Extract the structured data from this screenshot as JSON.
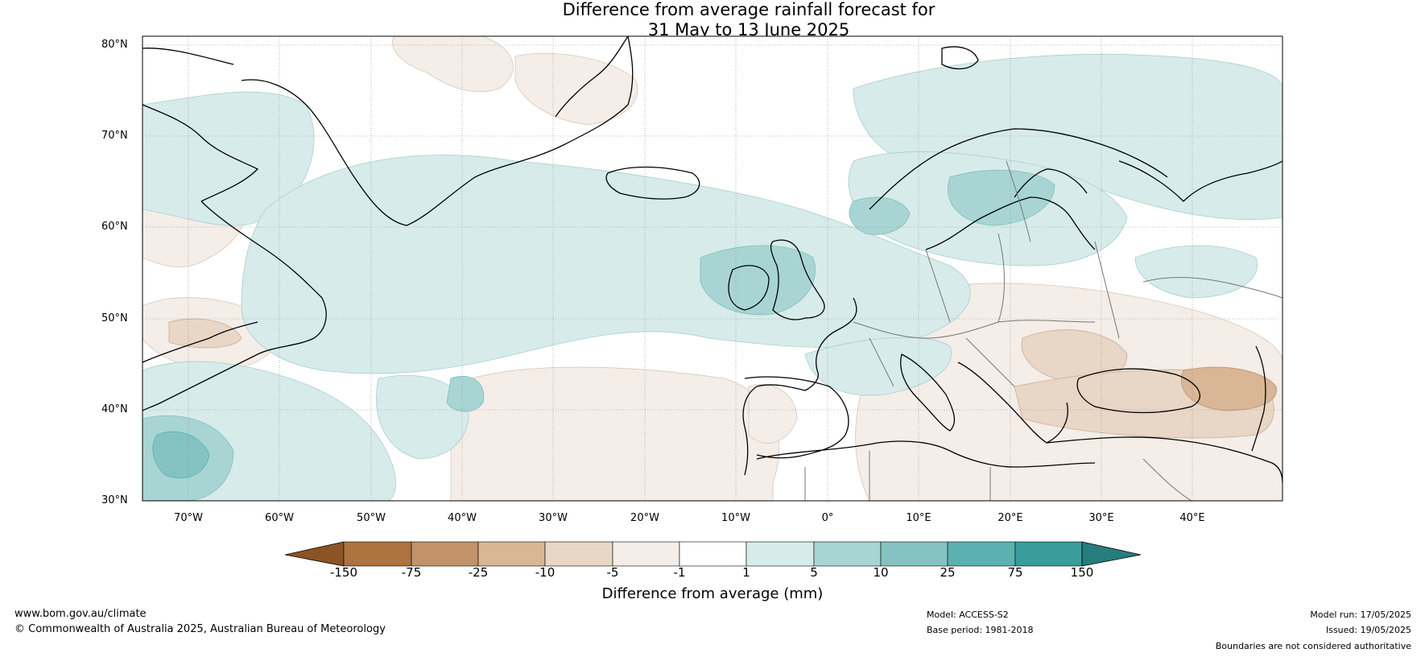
{
  "title": {
    "line1": "Difference from average rainfall forecast for",
    "line2": "31 May to 13 June 2025"
  },
  "map": {
    "lat_ticks": [
      "80°N",
      "70°N",
      "60°N",
      "50°N",
      "40°N",
      "30°N"
    ],
    "lon_ticks": [
      "70°W",
      "60°W",
      "50°W",
      "40°W",
      "30°W",
      "20°W",
      "10°W",
      "0°",
      "10°E",
      "20°E",
      "30°E",
      "40°E"
    ],
    "colors": {
      "frame": "#000000",
      "gridline": "#888888",
      "coastline": "#000000",
      "border": "#777777"
    }
  },
  "colorbar": {
    "title": "Difference from average (mm)",
    "ticks": [
      "-150",
      "-75",
      "-25",
      "-10",
      "-5",
      "-1",
      "1",
      "5",
      "10",
      "25",
      "75",
      "150"
    ],
    "colors": [
      "#8c5424",
      "#ad7340",
      "#c29268",
      "#d8b696",
      "#e8d6c6",
      "#f4ede8",
      "#ffffff",
      "#d7ebea",
      "#a8d5d4",
      "#84c3c1",
      "#5ab1af",
      "#3a9c9b",
      "#267e7c"
    ]
  },
  "footer": {
    "website": "www.bom.gov.au/climate",
    "copyright": "© Commonwealth of Australia 2025, Australian Bureau of Meteorology",
    "model": "Model: ACCESS-S2",
    "base_period": "Base period: 1981-2018",
    "model_run": "Model run: 17/05/2025",
    "issued": "Issued: 19/05/2025",
    "disclaimer": "Boundaries are not considered authoritative"
  }
}
